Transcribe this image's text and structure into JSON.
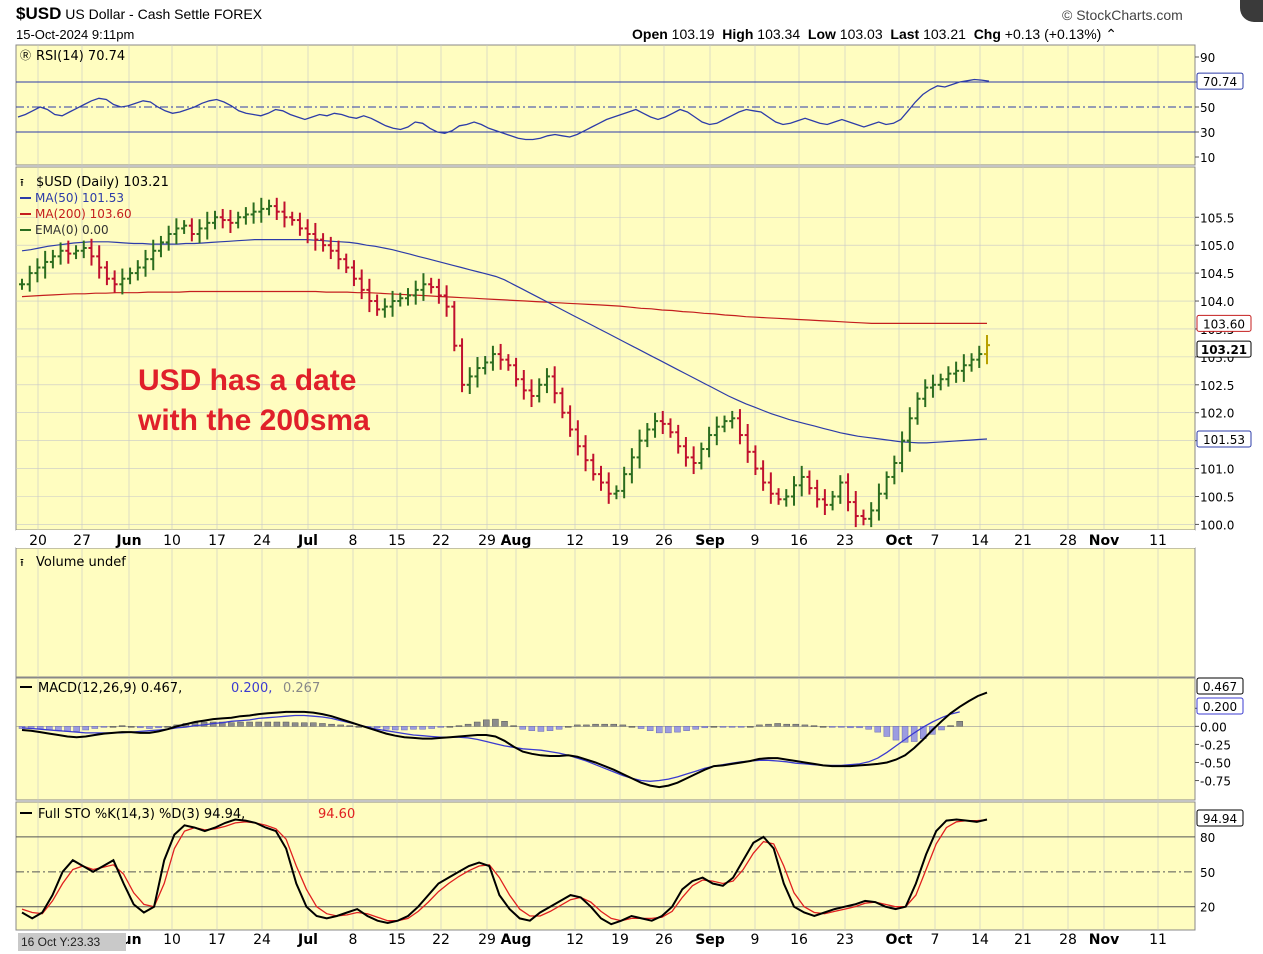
{
  "header": {
    "symbol": "$USD",
    "name": "US Dollar - Cash Settle",
    "exchange": "FOREX",
    "brand": "StockCharts.com",
    "datetime": "15-Oct-2024 9:11pm",
    "open_label": "Open",
    "open": "103.19",
    "high_label": "High",
    "high": "103.34",
    "low_label": "Low",
    "low": "103.03",
    "last_label": "Last",
    "last": "103.21",
    "chg_label": "Chg",
    "chg": "+0.13 (+0.13%)"
  },
  "annotation": [
    "USD has a date",
    "with the 200sma"
  ],
  "crosshair_label": "16 Oct Y:23.33",
  "colors": {
    "background": "#fffdc0",
    "up": "#2b6d1f",
    "down": "#c0102e",
    "ma50": "#2d3ca8",
    "ma200": "#c41e1e",
    "annotation": "#e0202a",
    "grid": "#c8c8c8"
  },
  "chart_data": [
    {
      "panel": "rsi",
      "type": "line",
      "label": "RSI(14) 70.74",
      "y_ticks": [
        "90",
        "70",
        "50",
        "30",
        "10"
      ],
      "badge": "70.74",
      "ylim": [
        10,
        90
      ],
      "values": [
        42,
        44,
        47,
        50,
        48,
        44,
        43,
        46,
        49,
        52,
        55,
        57,
        56,
        52,
        50,
        51,
        53,
        55,
        54,
        50,
        47,
        45,
        46,
        48,
        50,
        53,
        55,
        56,
        54,
        51,
        47,
        45,
        44,
        43,
        45,
        48,
        47,
        44,
        42,
        40,
        42,
        44,
        43,
        45,
        44,
        42,
        41,
        43,
        41,
        38,
        35,
        33,
        32,
        34,
        38,
        37,
        33,
        30,
        29,
        31,
        35,
        36,
        38,
        36,
        33,
        31,
        29,
        27,
        25,
        24,
        24,
        25,
        27,
        28,
        27,
        26,
        28,
        31,
        34,
        37,
        40,
        42,
        44,
        46,
        48,
        45,
        42,
        40,
        42,
        45,
        48,
        46,
        42,
        38,
        36,
        37,
        40,
        43,
        46,
        48,
        47,
        46,
        42,
        38,
        36,
        37,
        39,
        41,
        39,
        37,
        36,
        38,
        40,
        38,
        36,
        34,
        36,
        38,
        36,
        37,
        40,
        47,
        54,
        60,
        64,
        67,
        66,
        68,
        70,
        71,
        72,
        71.5,
        70.74
      ],
      "reference_lines": [
        70,
        50,
        30
      ]
    },
    {
      "panel": "price",
      "type": "ohlc",
      "title": "$USD (Daily) 103.21",
      "legend": [
        "MA(50) 101.53",
        "MA(200) 103.60",
        "EMA(0) 0.00"
      ],
      "y_ticks": [
        "105.5",
        "105.0",
        "104.5",
        "104.0",
        "103.5",
        "103.0",
        "102.5",
        "102.0",
        "101.5",
        "101.0",
        "100.5",
        "100.0"
      ],
      "ylim": [
        99.9,
        106.4
      ],
      "badges": {
        "ma200": "103.60",
        "last": "103.21",
        "ma50": "101.53"
      },
      "x_tick_labels": [
        "20",
        "27",
        "Jun",
        "10",
        "17",
        "24",
        "Jul",
        "8",
        "15",
        "22",
        "29",
        "Aug",
        "12",
        "19",
        "26",
        "Sep",
        "9",
        "16",
        "23",
        "Oct",
        "7",
        "14",
        "21",
        "28",
        "Nov",
        "11"
      ],
      "close": [
        104.3,
        104.5,
        104.6,
        104.7,
        104.8,
        104.9,
        104.85,
        104.9,
        104.95,
        104.8,
        104.6,
        104.4,
        104.3,
        104.4,
        104.5,
        104.6,
        104.75,
        104.9,
        105.05,
        105.2,
        105.3,
        105.35,
        105.2,
        105.3,
        105.4,
        105.5,
        105.45,
        105.4,
        105.5,
        105.55,
        105.6,
        105.65,
        105.7,
        105.6,
        105.5,
        105.45,
        105.3,
        105.2,
        105.1,
        105.0,
        104.9,
        104.75,
        104.6,
        104.4,
        104.2,
        104.0,
        103.85,
        103.9,
        104.0,
        104.05,
        104.1,
        104.2,
        104.3,
        104.25,
        104.1,
        103.9,
        103.2,
        102.5,
        102.65,
        102.8,
        102.9,
        103.05,
        102.95,
        102.85,
        102.6,
        102.4,
        102.3,
        102.5,
        102.65,
        102.35,
        102.0,
        101.7,
        101.4,
        101.15,
        100.9,
        100.75,
        100.55,
        100.6,
        100.9,
        101.2,
        101.5,
        101.7,
        101.85,
        101.8,
        101.65,
        101.4,
        101.2,
        101.1,
        101.35,
        101.6,
        101.75,
        101.85,
        101.9,
        101.6,
        101.3,
        101.0,
        100.75,
        100.55,
        100.45,
        100.5,
        100.7,
        100.85,
        100.65,
        100.45,
        100.35,
        100.5,
        100.75,
        100.4,
        100.15,
        100.1,
        100.25,
        100.55,
        100.85,
        101.1,
        101.5,
        101.9,
        102.25,
        102.45,
        102.5,
        102.6,
        102.7,
        102.75,
        102.85,
        102.95,
        103.05,
        103.21
      ],
      "ma50": [
        104.9,
        104.92,
        104.95,
        104.98,
        105.0,
        105.02,
        105.04,
        105.05,
        105.06,
        105.06,
        105.06,
        105.05,
        105.04,
        105.03,
        105.03,
        105.02,
        105.02,
        105.02,
        105.02,
        105.03,
        105.03,
        105.04,
        105.05,
        105.06,
        105.07,
        105.08,
        105.09,
        105.1,
        105.1,
        105.1,
        105.1,
        105.1,
        105.1,
        105.1,
        105.09,
        105.08,
        105.07,
        105.06,
        105.05,
        105.03,
        105.0,
        104.98,
        104.95,
        104.92,
        104.88,
        104.84,
        104.8,
        104.76,
        104.72,
        104.68,
        104.64,
        104.6,
        104.56,
        104.52,
        104.48,
        104.44,
        104.38,
        104.3,
        104.22,
        104.14,
        104.06,
        103.98,
        103.9,
        103.82,
        103.74,
        103.66,
        103.58,
        103.5,
        103.42,
        103.34,
        103.26,
        103.18,
        103.1,
        103.02,
        102.94,
        102.86,
        102.78,
        102.7,
        102.62,
        102.54,
        102.46,
        102.38,
        102.3,
        102.23,
        102.16,
        102.1,
        102.04,
        101.98,
        101.93,
        101.88,
        101.84,
        101.8,
        101.76,
        101.72,
        101.68,
        101.64,
        101.61,
        101.58,
        101.56,
        101.54,
        101.52,
        101.5,
        101.48,
        101.47,
        101.46,
        101.46,
        101.47,
        101.48,
        101.49,
        101.5,
        101.51,
        101.52,
        101.53
      ],
      "ma200": [
        104.08,
        104.09,
        104.1,
        104.11,
        104.12,
        104.13,
        104.13,
        104.14,
        104.14,
        104.15,
        104.15,
        104.15,
        104.16,
        104.16,
        104.16,
        104.16,
        104.17,
        104.17,
        104.17,
        104.17,
        104.17,
        104.17,
        104.17,
        104.17,
        104.17,
        104.17,
        104.17,
        104.17,
        104.17,
        104.16,
        104.16,
        104.16,
        104.15,
        104.15,
        104.14,
        104.13,
        104.12,
        104.11,
        104.1,
        104.09,
        104.08,
        104.07,
        104.06,
        104.05,
        104.04,
        104.03,
        104.02,
        104.01,
        104.0,
        103.99,
        103.98,
        103.97,
        103.96,
        103.95,
        103.94,
        103.93,
        103.92,
        103.91,
        103.89,
        103.87,
        103.86,
        103.84,
        103.83,
        103.81,
        103.8,
        103.78,
        103.77,
        103.75,
        103.74,
        103.72,
        103.71,
        103.7,
        103.69,
        103.68,
        103.67,
        103.66,
        103.65,
        103.64,
        103.63,
        103.62,
        103.61,
        103.6,
        103.6,
        103.6,
        103.6,
        103.6,
        103.6,
        103.6,
        103.6,
        103.6,
        103.6,
        103.6,
        103.6
      ]
    },
    {
      "panel": "volume",
      "type": "bar",
      "label": "Volume undef"
    },
    {
      "panel": "macd",
      "type": "line",
      "label_main": "MACD(12,26,9) 0.467,",
      "label_signal": "0.200,",
      "label_hist": "0.267",
      "y_ticks": [
        "0.25",
        "0.00",
        "-0.25",
        "-0.50",
        "-0.75"
      ],
      "badges": {
        "macd": "0.467",
        "signal": "0.200"
      },
      "ylim": [
        -0.95,
        0.6
      ],
      "macd": [
        -0.05,
        -0.06,
        -0.08,
        -0.1,
        -0.12,
        -0.14,
        -0.15,
        -0.14,
        -0.12,
        -0.1,
        -0.09,
        -0.08,
        -0.08,
        -0.09,
        -0.09,
        -0.07,
        -0.04,
        0.0,
        0.03,
        0.06,
        0.08,
        0.1,
        0.11,
        0.12,
        0.14,
        0.15,
        0.17,
        0.18,
        0.19,
        0.2,
        0.2,
        0.2,
        0.19,
        0.17,
        0.14,
        0.1,
        0.06,
        0.02,
        -0.02,
        -0.06,
        -0.1,
        -0.13,
        -0.15,
        -0.16,
        -0.17,
        -0.17,
        -0.16,
        -0.15,
        -0.14,
        -0.13,
        -0.12,
        -0.12,
        -0.14,
        -0.2,
        -0.28,
        -0.35,
        -0.38,
        -0.4,
        -0.41,
        -0.41,
        -0.4,
        -0.42,
        -0.46,
        -0.5,
        -0.55,
        -0.6,
        -0.66,
        -0.72,
        -0.78,
        -0.82,
        -0.84,
        -0.82,
        -0.78,
        -0.72,
        -0.66,
        -0.6,
        -0.55,
        -0.54,
        -0.52,
        -0.5,
        -0.48,
        -0.45,
        -0.44,
        -0.44,
        -0.46,
        -0.48,
        -0.5,
        -0.52,
        -0.54,
        -0.55,
        -0.55,
        -0.55,
        -0.54,
        -0.53,
        -0.52,
        -0.5,
        -0.46,
        -0.4,
        -0.3,
        -0.18,
        -0.05,
        0.07,
        0.18,
        0.27,
        0.35,
        0.42,
        0.467
      ],
      "signal": [
        -0.02,
        -0.03,
        -0.04,
        -0.05,
        -0.06,
        -0.07,
        -0.08,
        -0.09,
        -0.09,
        -0.09,
        -0.09,
        -0.09,
        -0.08,
        -0.07,
        -0.06,
        -0.05,
        -0.04,
        -0.02,
        -0.01,
        0.01,
        0.02,
        0.04,
        0.05,
        0.07,
        0.08,
        0.09,
        0.11,
        0.12,
        0.13,
        0.14,
        0.15,
        0.15,
        0.14,
        0.13,
        0.11,
        0.08,
        0.05,
        0.02,
        -0.01,
        -0.04,
        -0.06,
        -0.08,
        -0.1,
        -0.12,
        -0.13,
        -0.14,
        -0.15,
        -0.15,
        -0.15,
        -0.16,
        -0.18,
        -0.21,
        -0.24,
        -0.27,
        -0.29,
        -0.31,
        -0.32,
        -0.33,
        -0.35,
        -0.37,
        -0.4,
        -0.44,
        -0.48,
        -0.53,
        -0.58,
        -0.63,
        -0.68,
        -0.72,
        -0.75,
        -0.76,
        -0.75,
        -0.73,
        -0.7,
        -0.66,
        -0.62,
        -0.58,
        -0.55,
        -0.53,
        -0.51,
        -0.49,
        -0.48,
        -0.47,
        -0.47,
        -0.48,
        -0.49,
        -0.51,
        -0.52,
        -0.53,
        -0.54,
        -0.54,
        -0.54,
        -0.53,
        -0.52,
        -0.49,
        -0.44,
        -0.36,
        -0.27,
        -0.18,
        -0.09,
        -0.01,
        0.06,
        0.12,
        0.17,
        0.2
      ]
    },
    {
      "panel": "stochastic",
      "type": "line",
      "label_main": "Full STO %K(14,3) %D(3) 94.94,",
      "label_d": "94.60",
      "y_ticks": [
        "80",
        "50",
        "20"
      ],
      "badge": "94.94",
      "ylim": [
        0,
        110
      ],
      "k": [
        15,
        10,
        15,
        30,
        50,
        60,
        55,
        50,
        55,
        60,
        40,
        22,
        15,
        20,
        60,
        82,
        90,
        88,
        85,
        88,
        92,
        95,
        94,
        92,
        88,
        85,
        70,
        40,
        20,
        12,
        10,
        12,
        15,
        18,
        12,
        8,
        6,
        8,
        12,
        20,
        30,
        40,
        45,
        50,
        55,
        58,
        55,
        30,
        18,
        10,
        8,
        15,
        20,
        25,
        30,
        28,
        20,
        10,
        5,
        8,
        12,
        10,
        8,
        12,
        20,
        35,
        42,
        45,
        40,
        38,
        45,
        60,
        75,
        80,
        70,
        40,
        20,
        15,
        12,
        15,
        18,
        20,
        22,
        25,
        24,
        20,
        18,
        20,
        40,
        65,
        85,
        94,
        95,
        94,
        93,
        94.94
      ],
      "d": [
        18,
        15,
        14,
        25,
        40,
        52,
        55,
        52,
        54,
        56,
        48,
        32,
        22,
        20,
        40,
        70,
        85,
        88,
        86,
        87,
        89,
        92,
        93,
        92,
        90,
        87,
        78,
        55,
        35,
        20,
        14,
        12,
        13,
        15,
        14,
        11,
        8,
        8,
        10,
        16,
        24,
        33,
        40,
        46,
        51,
        55,
        56,
        45,
        30,
        18,
        12,
        12,
        16,
        21,
        26,
        28,
        24,
        16,
        10,
        8,
        10,
        10,
        10,
        11,
        16,
        28,
        38,
        43,
        42,
        40,
        42,
        52,
        66,
        76,
        74,
        55,
        32,
        20,
        15,
        14,
        16,
        18,
        20,
        23,
        24,
        22,
        20,
        20,
        30,
        52,
        74,
        88,
        93,
        94,
        94,
        94.6
      ]
    }
  ]
}
